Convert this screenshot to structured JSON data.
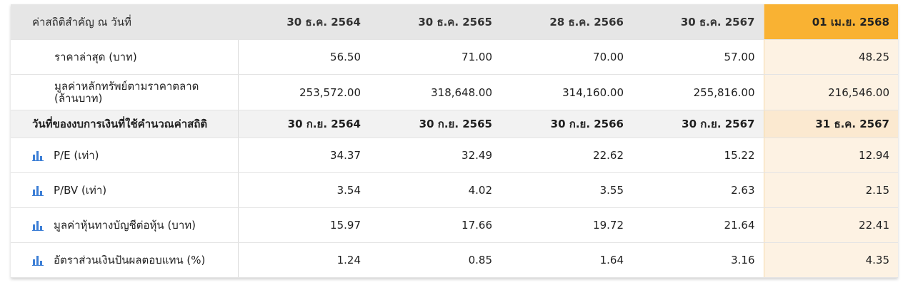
{
  "header": {
    "label": "ค่าสถิติสำคัญ ณ วันที่",
    "dates": [
      "30 ธ.ค. 2564",
      "30 ธ.ค. 2565",
      "28 ธ.ค. 2566",
      "30 ธ.ค. 2567",
      "01 เม.ย. 2568"
    ]
  },
  "rows": {
    "price": {
      "label": "ราคาล่าสุด (บาท)",
      "values": [
        "56.50",
        "71.00",
        "70.00",
        "57.00",
        "48.25"
      ]
    },
    "market_cap": {
      "label": "มูลค่าหลักทรัพย์ตามราคาตลาด (ล้านบาท)",
      "values": [
        "253,572.00",
        "318,648.00",
        "314,160.00",
        "255,816.00",
        "216,546.00"
      ]
    },
    "fin_date": {
      "label": "วันที่ของงบการเงินที่ใช้คำนวณค่าสถิติ",
      "values": [
        "30 ก.ย. 2564",
        "30 ก.ย. 2565",
        "30 ก.ย. 2566",
        "30 ก.ย. 2567",
        "31 ธ.ค. 2567"
      ]
    },
    "pe": {
      "label": "P/E (เท่า)",
      "icon": "bar-chart-icon",
      "values": [
        "34.37",
        "32.49",
        "22.62",
        "15.22",
        "12.94"
      ]
    },
    "pbv": {
      "label": "P/BV (เท่า)",
      "icon": "bar-chart-icon",
      "values": [
        "3.54",
        "4.02",
        "3.55",
        "2.63",
        "2.15"
      ]
    },
    "bvps": {
      "label": "มูลค่าหุ้นทางบัญชีต่อหุ้น (บาท)",
      "icon": "bar-chart-icon",
      "values": [
        "15.97",
        "17.66",
        "19.72",
        "21.64",
        "22.41"
      ]
    },
    "yield": {
      "label": "อัตราส่วนเงินปันผลตอบแทน (%)",
      "icon": "bar-chart-icon",
      "values": [
        "1.24",
        "0.85",
        "1.64",
        "3.16",
        "4.35"
      ]
    }
  },
  "colors": {
    "highlight_header": "#f9b233",
    "highlight_column": "#fdf2e3",
    "icon": "#3d7fd6"
  }
}
